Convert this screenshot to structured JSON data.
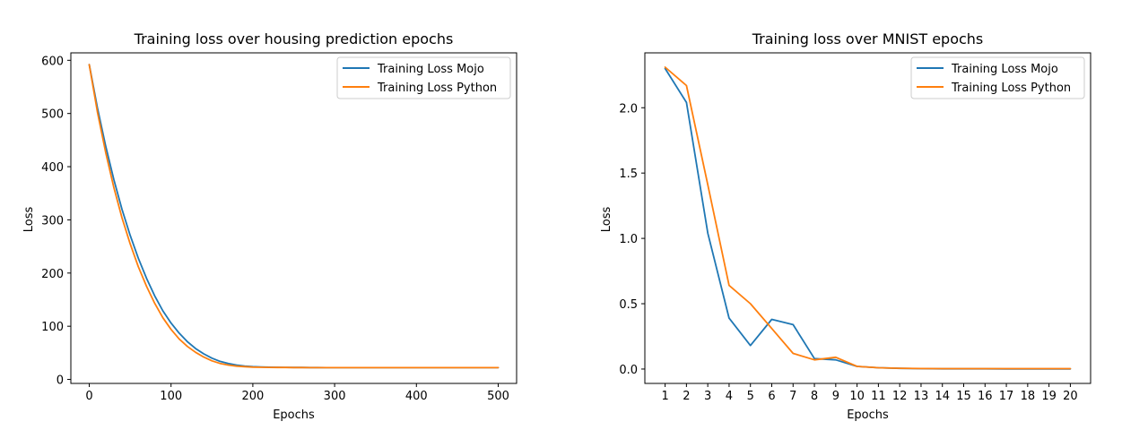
{
  "colors": {
    "mojo": "#1f77b4",
    "python": "#ff7f0e",
    "axis": "#000000",
    "legend_border": "#cccccc",
    "background": "#ffffff"
  },
  "chart_data": [
    {
      "type": "line",
      "title": "Training loss over housing prediction epochs",
      "xlabel": "Epochs",
      "ylabel": "Loss",
      "xlim": [
        -22.5,
        522.5
      ],
      "ylim": [
        -7.5,
        614
      ],
      "xticks": [
        0,
        100,
        200,
        300,
        400,
        500
      ],
      "yticks": [
        0,
        100,
        200,
        300,
        400,
        500,
        600
      ],
      "legend_position": "top-right",
      "grid": false,
      "series": [
        {
          "name": "Training Loss Mojo",
          "color": "#1f77b4",
          "x": [
            0,
            10,
            20,
            30,
            40,
            50,
            60,
            70,
            80,
            90,
            100,
            110,
            120,
            130,
            140,
            150,
            160,
            170,
            180,
            190,
            200,
            210,
            220,
            230,
            240,
            250,
            260,
            270,
            280,
            290,
            300,
            320,
            340,
            360,
            380,
            400,
            420,
            440,
            460,
            480,
            500
          ],
          "y": [
            592,
            511,
            439,
            376,
            320,
            271,
            228,
            190,
            157,
            129,
            106,
            87,
            71,
            58,
            48,
            40,
            34,
            30,
            27,
            25,
            24,
            23.5,
            23,
            22.8,
            22.6,
            22.5,
            22.4,
            22.3,
            22.3,
            22.2,
            22.2,
            22.2,
            22.1,
            22.1,
            22.1,
            22.1,
            22.1,
            22.1,
            22.1,
            22.1,
            22.1
          ]
        },
        {
          "name": "Training Loss Python",
          "color": "#ff7f0e",
          "x": [
            0,
            10,
            20,
            30,
            40,
            50,
            60,
            70,
            80,
            90,
            100,
            110,
            120,
            130,
            140,
            150,
            160,
            170,
            180,
            190,
            200,
            210,
            220,
            230,
            240,
            250,
            260,
            270,
            280,
            290,
            300,
            320,
            340,
            360,
            380,
            400,
            420,
            440,
            460,
            480,
            500
          ],
          "y": [
            592,
            503,
            427,
            361,
            304,
            255,
            212,
            175,
            143,
            116,
            94,
            76,
            62,
            51,
            42,
            35,
            30,
            27,
            25,
            24,
            23.2,
            22.8,
            22.6,
            22.5,
            22.4,
            22.3,
            22.3,
            22.2,
            22.2,
            22.2,
            22.1,
            22.1,
            22.1,
            22.1,
            22.1,
            22.1,
            22.1,
            22.1,
            22.1,
            22.1,
            22.1
          ]
        }
      ]
    },
    {
      "type": "line",
      "title": "Training loss over MNIST epochs",
      "xlabel": "Epochs",
      "ylabel": "Loss",
      "xlim": [
        0.05,
        20.95
      ],
      "ylim": [
        -0.11,
        2.42
      ],
      "xticks": [
        1,
        2,
        3,
        4,
        5,
        6,
        7,
        8,
        9,
        10,
        11,
        12,
        13,
        14,
        15,
        16,
        17,
        18,
        19,
        20
      ],
      "yticks": [
        0.0,
        0.5,
        1.0,
        1.5,
        2.0
      ],
      "ytick_labels": [
        "0.0",
        "0.5",
        "1.0",
        "1.5",
        "2.0"
      ],
      "legend_position": "top-right",
      "grid": false,
      "series": [
        {
          "name": "Training Loss Mojo",
          "color": "#1f77b4",
          "x": [
            1,
            2,
            3,
            4,
            5,
            6,
            7,
            8,
            9,
            10,
            11,
            12,
            13,
            14,
            15,
            16,
            17,
            18,
            19,
            20
          ],
          "y": [
            2.3,
            2.04,
            1.04,
            0.39,
            0.18,
            0.38,
            0.34,
            0.08,
            0.07,
            0.02,
            0.01,
            0.005,
            0.003,
            0.002,
            0.002,
            0.002,
            0.001,
            0.001,
            0.001,
            0.001
          ]
        },
        {
          "name": "Training Loss Python",
          "color": "#ff7f0e",
          "x": [
            1,
            2,
            3,
            4,
            5,
            6,
            7,
            8,
            9,
            10,
            11,
            12,
            13,
            14,
            15,
            16,
            17,
            18,
            19,
            20
          ],
          "y": [
            2.31,
            2.17,
            1.41,
            0.64,
            0.5,
            0.31,
            0.12,
            0.07,
            0.09,
            0.02,
            0.01,
            0.006,
            0.004,
            0.003,
            0.003,
            0.003,
            0.003,
            0.003,
            0.003,
            0.003
          ]
        }
      ]
    }
  ]
}
